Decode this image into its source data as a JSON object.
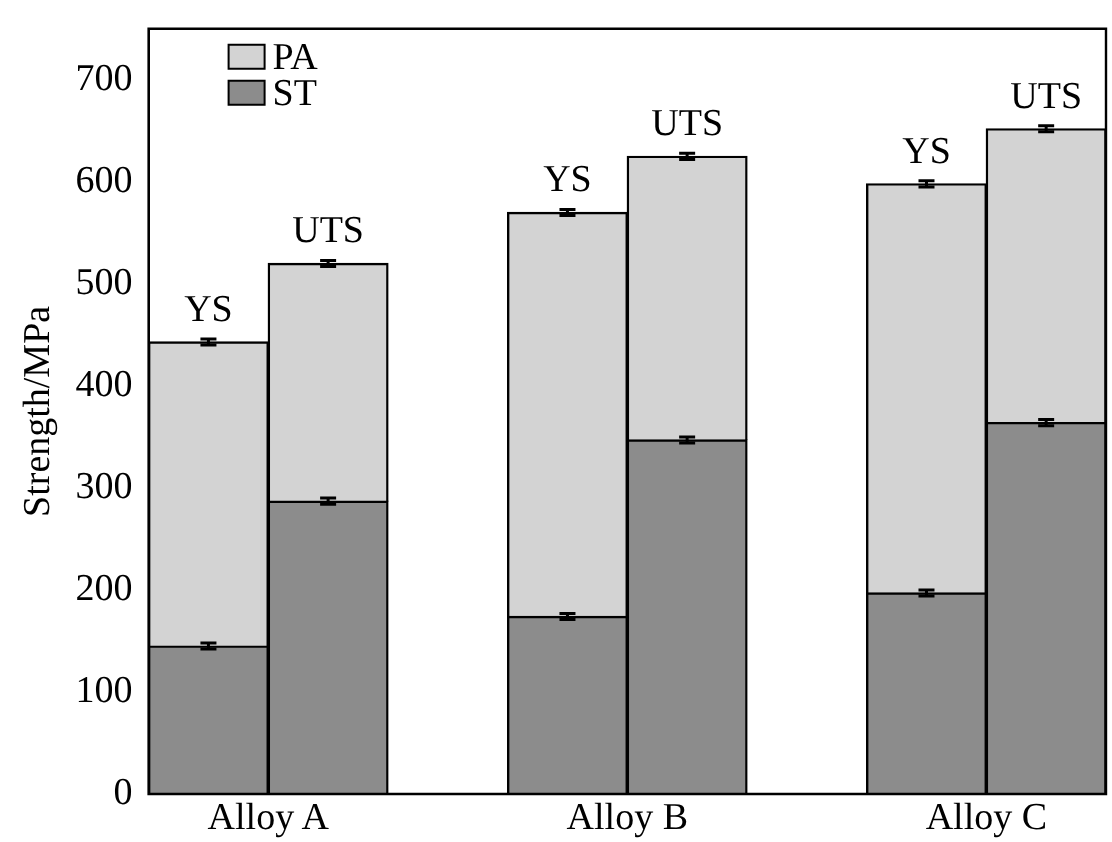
{
  "chart_data": {
    "type": "bar",
    "stacked": true,
    "ylabel": "Strength/MPa",
    "categories": [
      null,
      null,
      null,
      null,
      null,
      null
    ],
    "series": [
      {
        "name": "ST",
        "color": "#8c8c8c",
        "values": [
          145,
          287,
          174,
          347,
          197,
          364
        ],
        "errors": [
          3,
          3,
          3,
          3,
          3,
          3
        ]
      },
      {
        "name": "PA",
        "color": "#d3d3d3",
        "values": [
          298,
          233,
          396,
          278,
          401,
          288
        ],
        "errors": [
          3,
          3,
          3,
          3,
          3,
          3
        ]
      }
    ],
    "ylim": [
      0,
      750
    ],
    "yticks": [
      0,
      100,
      200,
      300,
      400,
      500,
      600,
      700
    ],
    "grid": false,
    "legend": "top left",
    "tick_labels": "y",
    "annotations": [
      "Alloy A",
      "Alloy B",
      "Alloy C",
      {
        "text": "YS",
        "y": 443
      },
      {
        "text": "UTS",
        "y": 520
      },
      {
        "text": "YS",
        "y": 570
      },
      {
        "text": "UTS",
        "y": 625
      },
      {
        "text": "YS",
        "y": 598
      },
      {
        "text": "UTS",
        "y": 652
      }
    ]
  }
}
